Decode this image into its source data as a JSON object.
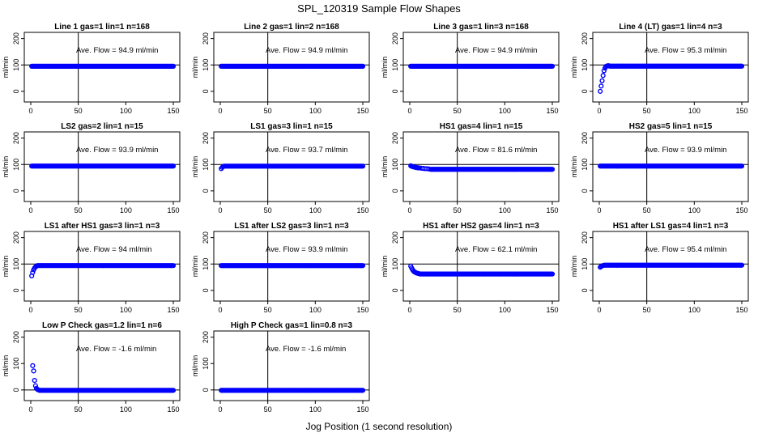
{
  "figure": {
    "title": "SPL_120319  Sample Flow Shapes",
    "xlabel": "Jog Position (1 second resolution)"
  },
  "style": {
    "point_color": "#0000ff",
    "line_color": "#000000"
  },
  "chart_data": [
    {
      "type": "scatter",
      "title": "Line 1 gas=1 lin=1 n=168",
      "annotation": "Ave. Flow = 94.9  ml/min",
      "ylabel": "ml/min",
      "xlim": [
        0,
        150
      ],
      "ylim": [
        -25,
        205
      ],
      "xticks": [
        0,
        50,
        100,
        150
      ],
      "yticks": [
        0,
        100,
        200
      ],
      "yticklabels": [
        "0",
        "100",
        "200"
      ],
      "vline": 50,
      "hline": 100,
      "start": [],
      "level": 94.9,
      "level_from": 1
    },
    {
      "type": "scatter",
      "title": "Line 2 gas=1 lin=2 n=168",
      "annotation": "Ave. Flow = 94.9  ml/min",
      "ylabel": "ml/min",
      "xlim": [
        0,
        150
      ],
      "ylim": [
        -25,
        205
      ],
      "xticks": [
        0,
        50,
        100,
        150
      ],
      "yticks": [
        0,
        100,
        200
      ],
      "yticklabels": [
        "0",
        "100",
        "200"
      ],
      "vline": 50,
      "hline": 100,
      "start": [],
      "level": 94.9,
      "level_from": 1
    },
    {
      "type": "scatter",
      "title": "Line 3 gas=1 lin=3 n=168",
      "annotation": "Ave. Flow = 94.9  ml/min",
      "ylabel": "ml/min",
      "xlim": [
        0,
        150
      ],
      "ylim": [
        -25,
        205
      ],
      "xticks": [
        0,
        50,
        100,
        150
      ],
      "yticks": [
        0,
        100,
        200
      ],
      "yticklabels": [
        "0",
        "100",
        "200"
      ],
      "vline": 50,
      "hline": 100,
      "start": [],
      "level": 94.9,
      "level_from": 1
    },
    {
      "type": "scatter",
      "title": "Line 4 (LT) gas=1 lin=4 n=3",
      "annotation": "Ave. Flow = 95.3  ml/min",
      "ylabel": "ml/min",
      "xlim": [
        0,
        150
      ],
      "ylim": [
        -25,
        205
      ],
      "xticks": [
        0,
        50,
        100,
        150
      ],
      "yticks": [
        0,
        100,
        200
      ],
      "yticklabels": [
        "0",
        "100",
        "200"
      ],
      "vline": 50,
      "hline": 100,
      "start": [
        [
          1,
          0
        ],
        [
          2,
          20
        ],
        [
          3,
          40
        ],
        [
          4,
          60
        ],
        [
          5,
          78
        ],
        [
          6,
          88
        ],
        [
          7,
          94
        ],
        [
          8,
          96
        ],
        [
          9,
          97
        ],
        [
          10,
          97
        ]
      ],
      "level": 95.3,
      "level_from": 11
    },
    {
      "type": "scatter",
      "title": "LS2 gas=2 lin=1 n=15",
      "annotation": "Ave. Flow = 93.9  ml/min",
      "ylabel": "ml/min",
      "xlim": [
        0,
        150
      ],
      "ylim": [
        -25,
        205
      ],
      "xticks": [
        0,
        50,
        100,
        150
      ],
      "yticks": [
        0,
        100,
        200
      ],
      "yticklabels": [
        "0",
        "100",
        "200"
      ],
      "vline": 50,
      "hline": 100,
      "start": [],
      "level": 93.9,
      "level_from": 1
    },
    {
      "type": "scatter",
      "title": "LS1 gas=3 lin=1 n=15",
      "annotation": "Ave. Flow = 93.7  ml/min",
      "ylabel": "ml/min",
      "xlim": [
        0,
        150
      ],
      "ylim": [
        -25,
        205
      ],
      "xticks": [
        0,
        50,
        100,
        150
      ],
      "yticks": [
        0,
        100,
        200
      ],
      "yticklabels": [
        "0",
        "100",
        "200"
      ],
      "vline": 50,
      "hline": 100,
      "start": [
        [
          1,
          84
        ],
        [
          2,
          89
        ],
        [
          3,
          92
        ]
      ],
      "level": 93.7,
      "level_from": 4
    },
    {
      "type": "scatter",
      "title": "HS1 gas=4 lin=1 n=15",
      "annotation": "Ave. Flow = 81.6  ml/min",
      "ylabel": "ml/min",
      "xlim": [
        0,
        150
      ],
      "ylim": [
        -25,
        205
      ],
      "xticks": [
        0,
        50,
        100,
        150
      ],
      "yticks": [
        0,
        100,
        200
      ],
      "yticklabels": [
        "0",
        "100",
        "200"
      ],
      "vline": 50,
      "hline": 100,
      "start": [
        [
          1,
          95
        ],
        [
          2,
          93
        ],
        [
          3,
          92
        ],
        [
          4,
          91
        ],
        [
          5,
          90
        ],
        [
          6,
          89
        ],
        [
          7,
          88
        ],
        [
          8,
          88
        ],
        [
          9,
          87
        ],
        [
          10,
          87
        ],
        [
          12,
          86
        ],
        [
          14,
          85
        ],
        [
          16,
          84
        ],
        [
          18,
          84
        ],
        [
          20,
          83
        ]
      ],
      "level": 81.6,
      "level_from": 22
    },
    {
      "type": "scatter",
      "title": "HS2 gas=5 lin=1 n=15",
      "annotation": "Ave. Flow = 93.9  ml/min",
      "ylabel": "ml/min",
      "xlim": [
        0,
        150
      ],
      "ylim": [
        -25,
        205
      ],
      "xticks": [
        0,
        50,
        100,
        150
      ],
      "yticks": [
        0,
        100,
        200
      ],
      "yticklabels": [
        "0",
        "100",
        "200"
      ],
      "vline": 50,
      "hline": 100,
      "start": [],
      "level": 93.9,
      "level_from": 1
    },
    {
      "type": "scatter",
      "title": "LS1 after HS1 gas=3 lin=1 n=3",
      "annotation": "Ave. Flow = 94  ml/min",
      "ylabel": "ml/min",
      "xlim": [
        0,
        150
      ],
      "ylim": [
        -25,
        205
      ],
      "xticks": [
        0,
        50,
        100,
        150
      ],
      "yticks": [
        0,
        100,
        200
      ],
      "yticklabels": [
        "0",
        "100",
        "200"
      ],
      "vline": 50,
      "hline": 100,
      "start": [
        [
          1,
          55
        ],
        [
          2,
          68
        ],
        [
          3,
          78
        ],
        [
          4,
          85
        ],
        [
          5,
          89
        ],
        [
          6,
          92
        ]
      ],
      "level": 94,
      "level_from": 7
    },
    {
      "type": "scatter",
      "title": "LS1 after LS2 gas=3 lin=1 n=3",
      "annotation": "Ave. Flow = 93.9  ml/min",
      "ylabel": "ml/min",
      "xlim": [
        0,
        150
      ],
      "ylim": [
        -25,
        205
      ],
      "xticks": [
        0,
        50,
        100,
        150
      ],
      "yticks": [
        0,
        100,
        200
      ],
      "yticklabels": [
        "0",
        "100",
        "200"
      ],
      "vline": 50,
      "hline": 100,
      "start": [],
      "level": 93.9,
      "level_from": 1
    },
    {
      "type": "scatter",
      "title": "HS1 after HS2 gas=4 lin=1 n=3",
      "annotation": "Ave. Flow = 62.1  ml/min",
      "ylabel": "ml/min",
      "xlim": [
        0,
        150
      ],
      "ylim": [
        -25,
        205
      ],
      "xticks": [
        0,
        50,
        100,
        150
      ],
      "yticks": [
        0,
        100,
        200
      ],
      "yticklabels": [
        "0",
        "100",
        "200"
      ],
      "vline": 50,
      "hline": 100,
      "start": [
        [
          1,
          92
        ],
        [
          2,
          85
        ],
        [
          3,
          78
        ],
        [
          4,
          73
        ],
        [
          5,
          70
        ],
        [
          6,
          68
        ],
        [
          7,
          66
        ],
        [
          8,
          65
        ],
        [
          9,
          64
        ],
        [
          10,
          63
        ]
      ],
      "level": 62.1,
      "level_from": 11
    },
    {
      "type": "scatter",
      "title": "HS1 after LS1 gas=4 lin=1 n=3",
      "annotation": "Ave. Flow = 95.4  ml/min",
      "ylabel": "ml/min",
      "xlim": [
        0,
        150
      ],
      "ylim": [
        -25,
        205
      ],
      "xticks": [
        0,
        50,
        100,
        150
      ],
      "yticks": [
        0,
        100,
        200
      ],
      "yticklabels": [
        "0",
        "100",
        "200"
      ],
      "vline": 50,
      "hline": 100,
      "start": [
        [
          1,
          88
        ],
        [
          2,
          91
        ],
        [
          3,
          93
        ],
        [
          4,
          94
        ]
      ],
      "level": 95.4,
      "level_from": 5
    },
    {
      "type": "scatter",
      "title": "Low P Check gas=1.2 lin=1 n=6",
      "annotation": "Ave. Flow = -1.6  ml/min",
      "ylabel": "ml/min",
      "xlim": [
        0,
        150
      ],
      "ylim": [
        -25,
        205
      ],
      "xticks": [
        0,
        50,
        100,
        150
      ],
      "yticks": [
        0,
        100,
        200
      ],
      "yticklabels": [
        "0",
        "100",
        "200"
      ],
      "vline": 50,
      "hline": 0,
      "start": [
        [
          2,
          92
        ],
        [
          3,
          72
        ],
        [
          4,
          36
        ],
        [
          5,
          16
        ],
        [
          6,
          6
        ],
        [
          7,
          2
        ],
        [
          8,
          0
        ]
      ],
      "level": -1.6,
      "level_from": 9
    },
    {
      "type": "scatter",
      "title": "High P Check gas=1 lin=0.8 n=3",
      "annotation": "Ave. Flow = -1.6  ml/min",
      "ylabel": "ml/min",
      "xlim": [
        0,
        150
      ],
      "ylim": [
        -25,
        205
      ],
      "xticks": [
        0,
        50,
        100,
        150
      ],
      "yticks": [
        0,
        100,
        200
      ],
      "yticklabels": [
        "0",
        "100",
        "200"
      ],
      "vline": 50,
      "hline": 0,
      "start": [],
      "level": -1.6,
      "level_from": 1
    }
  ]
}
